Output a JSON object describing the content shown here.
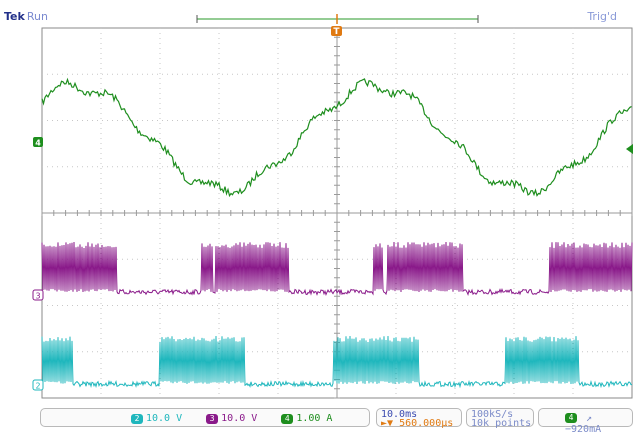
{
  "header": {
    "brand": "Tek",
    "run_state": "Run",
    "trigger_state": "Trig'd"
  },
  "channels": [
    {
      "id": "2",
      "scale": "10.0 V",
      "color": "#1fb7bd",
      "marker_label": "2"
    },
    {
      "id": "3",
      "scale": "10.0 V",
      "color": "#8a1a8a",
      "marker_label": "3"
    },
    {
      "id": "4",
      "scale": "1.00 A",
      "color": "#1e8e1e",
      "marker_label": "4"
    }
  ],
  "timebase": {
    "scale": "10.0ms",
    "delay": "560.000µs",
    "delay_icon": "trigger-position-icon"
  },
  "acquisition": {
    "sample_rate": "100kS/s",
    "record_length": "10k points"
  },
  "trigger": {
    "source": "4",
    "slope_icon": "rising-edge-icon",
    "level": "−920mA",
    "marker_label": "T"
  },
  "colors": {
    "grid": "#c7c7c7",
    "graticule_border": "#8a8a8a",
    "ch2": "#1fb7bd",
    "ch3": "#8a1a8a",
    "ch4": "#1e8e1e",
    "trigger_marker": "#e07a12",
    "record_bar": "#2a9a2a"
  }
}
